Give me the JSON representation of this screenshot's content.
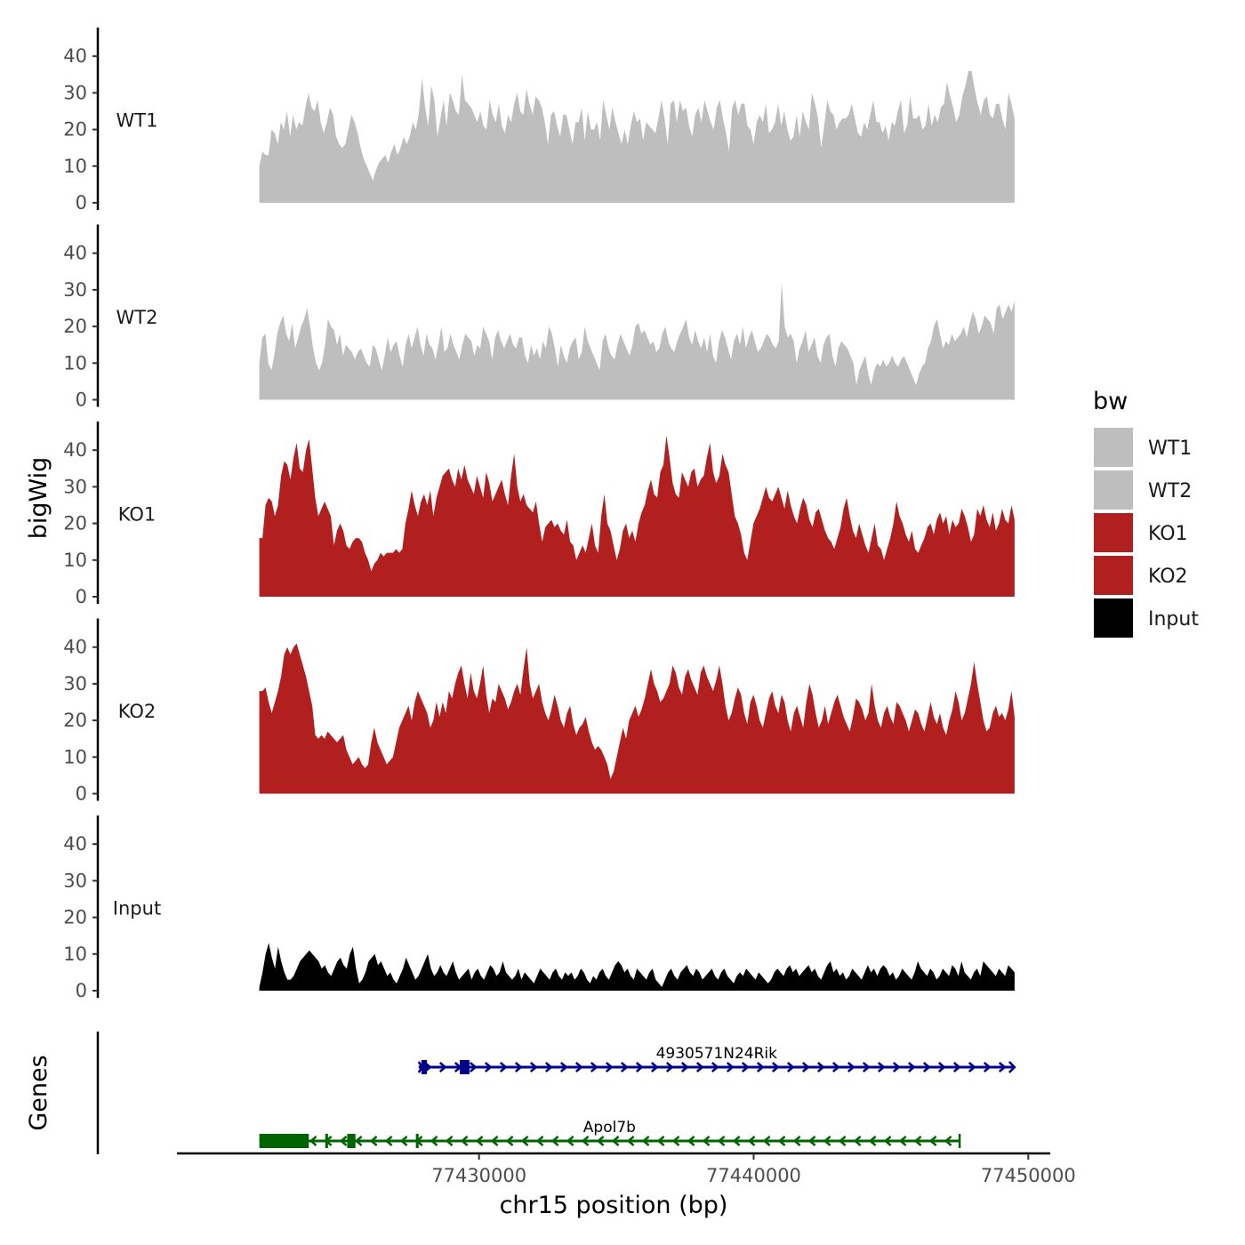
{
  "chart_data": {
    "type": "area",
    "ylabel": "bigWig",
    "xlabel": "chr15 position (bp)",
    "x_range": [
      77422000,
      77449500
    ],
    "x_axis_range": [
      77419000,
      77450800
    ],
    "x_ticks": [
      77430000,
      77440000,
      77450000
    ],
    "x_tick_labels": [
      "77430000",
      "77440000",
      "77450000"
    ],
    "y_range": [
      0,
      45
    ],
    "y_ticks": [
      0,
      10,
      20,
      30,
      40
    ],
    "y_tick_labels": [
      "0",
      "10",
      "20",
      "30",
      "40"
    ],
    "tracks": [
      {
        "name": "WT1",
        "color": "#bebebe",
        "values": [
          10,
          14,
          13,
          13,
          20,
          19,
          16,
          22,
          20,
          25,
          18,
          24,
          20,
          22,
          21,
          26,
          30,
          26,
          25,
          28,
          22,
          19,
          22,
          26,
          24,
          18,
          16,
          15,
          16,
          20,
          24,
          22,
          19,
          15,
          12,
          10,
          8,
          6,
          9,
          11,
          12,
          13,
          11,
          14,
          16,
          13,
          15,
          18,
          16,
          18,
          22,
          20,
          25,
          34,
          26,
          21,
          32,
          28,
          18,
          23,
          28,
          21,
          30,
          28,
          25,
          24,
          35,
          28,
          27,
          26,
          24,
          22,
          25,
          21,
          20,
          28,
          24,
          22,
          27,
          21,
          19,
          24,
          22,
          27,
          30,
          25,
          24,
          31,
          27,
          24,
          29,
          28,
          26,
          22,
          16,
          24,
          25,
          21,
          18,
          24,
          24,
          20,
          16,
          22,
          22,
          26,
          17,
          25,
          20,
          20,
          22,
          17,
          28,
          24,
          20,
          26,
          22,
          19,
          16,
          20,
          16,
          21,
          25,
          22,
          23,
          17,
          22,
          21,
          20,
          19,
          23,
          28,
          23,
          16,
          27,
          28,
          22,
          28,
          25,
          26,
          21,
          18,
          24,
          26,
          22,
          28,
          25,
          22,
          20,
          26,
          28,
          23,
          19,
          14,
          26,
          28,
          24,
          27,
          27,
          21,
          20,
          16,
          22,
          24,
          22,
          27,
          19,
          20,
          22,
          27,
          21,
          25,
          20,
          17,
          18,
          24,
          18,
          25,
          22,
          20,
          30,
          27,
          23,
          15,
          21,
          28,
          25,
          24,
          20,
          22,
          23,
          23,
          24,
          27,
          23,
          19,
          18,
          22,
          20,
          24,
          28,
          22,
          22,
          19,
          21,
          17,
          22,
          21,
          25,
          28,
          19,
          21,
          29,
          23,
          23,
          24,
          20,
          21,
          27,
          21,
          24,
          22,
          26,
          27,
          33,
          29,
          26,
          22,
          24,
          29,
          32,
          36,
          36,
          31,
          27,
          24,
          28,
          29,
          24,
          23,
          27,
          27,
          23,
          20,
          30,
          27,
          23
        ]
      },
      {
        "name": "WT2",
        "color": "#bebebe",
        "values": [
          10,
          17,
          18,
          10,
          8,
          12,
          18,
          21,
          23,
          18,
          16,
          21,
          14,
          17,
          20,
          22,
          25,
          20,
          14,
          10,
          8,
          10,
          15,
          22,
          20,
          19,
          15,
          18,
          12,
          15,
          14,
          13,
          11,
          13,
          14,
          12,
          10,
          9,
          15,
          14,
          11,
          8,
          12,
          17,
          13,
          15,
          16,
          12,
          9,
          15,
          18,
          14,
          17,
          20,
          15,
          12,
          18,
          15,
          14,
          11,
          15,
          20,
          13,
          14,
          18,
          15,
          13,
          11,
          15,
          18,
          17,
          16,
          12,
          15,
          14,
          20,
          18,
          16,
          11,
          17,
          19,
          16,
          14,
          16,
          18,
          15,
          14,
          17,
          17,
          12,
          10,
          15,
          12,
          14,
          11,
          16,
          14,
          20,
          18,
          14,
          9,
          15,
          12,
          10,
          14,
          16,
          17,
          11,
          13,
          20,
          16,
          14,
          12,
          10,
          8,
          16,
          18,
          14,
          12,
          11,
          15,
          18,
          16,
          14,
          12,
          15,
          20,
          21,
          18,
          19,
          17,
          15,
          16,
          13,
          14,
          18,
          20,
          16,
          14,
          13,
          16,
          18,
          20,
          22,
          17,
          15,
          19,
          16,
          14,
          17,
          13,
          18,
          12,
          10,
          16,
          19,
          17,
          14,
          11,
          16,
          18,
          15,
          20,
          14,
          17,
          19,
          16,
          13,
          14,
          16,
          18,
          17,
          15,
          14,
          16,
          32,
          20,
          17,
          18,
          16,
          10,
          14,
          16,
          19,
          13,
          15,
          17,
          12,
          10,
          15,
          17,
          18,
          12,
          9,
          14,
          16,
          15,
          14,
          12,
          10,
          4,
          8,
          10,
          12,
          7,
          4,
          8,
          10,
          9,
          11,
          9,
          10,
          12,
          10,
          9,
          11,
          12,
          10,
          8,
          6,
          4,
          7,
          9,
          10,
          14,
          16,
          20,
          22,
          18,
          14,
          16,
          15,
          18,
          16,
          17,
          18,
          20,
          17,
          21,
          24,
          22,
          18,
          20,
          23,
          22,
          21,
          18,
          25,
          26,
          22,
          24,
          26,
          24,
          27
        ]
      },
      {
        "name": "KO1",
        "color": "#b21f1f",
        "values": [
          16,
          16,
          25,
          27,
          26,
          22,
          25,
          33,
          37,
          36,
          32,
          38,
          42,
          35,
          34,
          40,
          43,
          35,
          27,
          22,
          24,
          26,
          24,
          22,
          14,
          18,
          20,
          18,
          14,
          13,
          15,
          16,
          16,
          15,
          12,
          10,
          7,
          9,
          10,
          12,
          11,
          12,
          12,
          12,
          13,
          12,
          13,
          20,
          24,
          29,
          25,
          22,
          26,
          28,
          25,
          29,
          22,
          27,
          30,
          33,
          34,
          35,
          32,
          30,
          35,
          32,
          36,
          32,
          30,
          28,
          33,
          30,
          27,
          34,
          31,
          26,
          28,
          30,
          32,
          28,
          25,
          33,
          39,
          30,
          26,
          28,
          25,
          24,
          23,
          26,
          20,
          15,
          19,
          20,
          21,
          19,
          20,
          18,
          17,
          21,
          15,
          14,
          10,
          12,
          14,
          12,
          16,
          20,
          14,
          12,
          22,
          28,
          20,
          18,
          14,
          10,
          13,
          18,
          20,
          16,
          18,
          15,
          20,
          23,
          25,
          29,
          32,
          28,
          27,
          34,
          36,
          44,
          38,
          31,
          28,
          27,
          34,
          32,
          30,
          34,
          35,
          30,
          32,
          33,
          38,
          42,
          34,
          31,
          33,
          39,
          36,
          34,
          28,
          22,
          20,
          17,
          12,
          10,
          15,
          20,
          22,
          24,
          27,
          30,
          27,
          26,
          28,
          30,
          27,
          24,
          29,
          25,
          22,
          20,
          24,
          27,
          25,
          21,
          19,
          23,
          24,
          21,
          18,
          16,
          15,
          13,
          16,
          19,
          24,
          27,
          22,
          18,
          16,
          20,
          17,
          14,
          12,
          16,
          20,
          14,
          13,
          10,
          13,
          16,
          20,
          26,
          22,
          20,
          17,
          15,
          18,
          13,
          12,
          14,
          16,
          19,
          20,
          17,
          21,
          23,
          20,
          22,
          17,
          21,
          19,
          20,
          24,
          22,
          19,
          15,
          17,
          24,
          22,
          25,
          21,
          19,
          23,
          18,
          20,
          24,
          21,
          20,
          25,
          21
        ]
      },
      {
        "name": "KO2",
        "color": "#b21f1f",
        "values": [
          28,
          28,
          29,
          25,
          22,
          25,
          28,
          32,
          38,
          40,
          38,
          40,
          41,
          38,
          35,
          32,
          28,
          24,
          16,
          15,
          16,
          15,
          17,
          16,
          15,
          14,
          15,
          16,
          12,
          10,
          8,
          9,
          10,
          8,
          7,
          8,
          14,
          18,
          14,
          12,
          10,
          8,
          9,
          10,
          14,
          18,
          20,
          22,
          24,
          20,
          25,
          28,
          26,
          24,
          22,
          18,
          20,
          25,
          21,
          25,
          22,
          28,
          26,
          30,
          33,
          35,
          30,
          26,
          33,
          28,
          26,
          30,
          35,
          27,
          22,
          26,
          25,
          30,
          28,
          26,
          23,
          25,
          28,
          30,
          27,
          34,
          40,
          30,
          26,
          28,
          30,
          25,
          22,
          20,
          23,
          27,
          24,
          20,
          18,
          22,
          24,
          19,
          16,
          18,
          19,
          21,
          17,
          14,
          12,
          13,
          12,
          10,
          8,
          4,
          6,
          10,
          14,
          18,
          15,
          20,
          22,
          24,
          21,
          23,
          26,
          30,
          34,
          30,
          28,
          25,
          26,
          28,
          30,
          35,
          33,
          29,
          27,
          32,
          34,
          31,
          29,
          27,
          33,
          35,
          32,
          30,
          28,
          31,
          35,
          30,
          24,
          20,
          22,
          26,
          29,
          27,
          22,
          19,
          25,
          27,
          24,
          20,
          18,
          22,
          26,
          28,
          24,
          22,
          27,
          25,
          20,
          17,
          22,
          24,
          21,
          18,
          25,
          30,
          27,
          22,
          18,
          20,
          24,
          19,
          22,
          25,
          27,
          24,
          21,
          19,
          17,
          21,
          26,
          25,
          23,
          20,
          22,
          30,
          24,
          20,
          18,
          22,
          24,
          21,
          19,
          25,
          24,
          22,
          20,
          17,
          20,
          23,
          22,
          19,
          17,
          21,
          25,
          21,
          19,
          22,
          18,
          16,
          20,
          23,
          28,
          25,
          20,
          22,
          26,
          30,
          36,
          30,
          25,
          20,
          17,
          18,
          22,
          24,
          21,
          22,
          20,
          23,
          28,
          21
        ]
      },
      {
        "name": "Input",
        "color": "#000000",
        "values": [
          1,
          5,
          10,
          13,
          9,
          6,
          12,
          8,
          5,
          3,
          3,
          4,
          6,
          8,
          9,
          10,
          11,
          10,
          9,
          8,
          6,
          7,
          5,
          4,
          6,
          8,
          9,
          7,
          6,
          10,
          12,
          6,
          2,
          3,
          5,
          8,
          9,
          10,
          7,
          8,
          6,
          4,
          5,
          3,
          2,
          4,
          6,
          9,
          7,
          5,
          3,
          4,
          6,
          8,
          10,
          6,
          4,
          5,
          7,
          5,
          4,
          6,
          8,
          5,
          3,
          4,
          5,
          6,
          3,
          5,
          6,
          4,
          3,
          5,
          7,
          6,
          4,
          5,
          8,
          5,
          4,
          3,
          4,
          6,
          3,
          5,
          4,
          3,
          2,
          4,
          6,
          5,
          4,
          3,
          5,
          6,
          4,
          3,
          5,
          4,
          5,
          3,
          4,
          6,
          5,
          3,
          2,
          4,
          3,
          5,
          6,
          4,
          3,
          5,
          7,
          8,
          7,
          5,
          6,
          4,
          3,
          6,
          5,
          4,
          3,
          5,
          6,
          3,
          2,
          1,
          3,
          5,
          6,
          4,
          3,
          5,
          6,
          7,
          5,
          4,
          6,
          5,
          3,
          4,
          5,
          6,
          4,
          3,
          5,
          6,
          4,
          3,
          2,
          4,
          5,
          4,
          6,
          5,
          4,
          3,
          5,
          4,
          3,
          2,
          3,
          5,
          6,
          5,
          4,
          6,
          7,
          5,
          6,
          4,
          5,
          6,
          7,
          5,
          6,
          4,
          3,
          5,
          7,
          8,
          5,
          6,
          4,
          5,
          3,
          4,
          6,
          5,
          4,
          3,
          5,
          7,
          5,
          6,
          4,
          6,
          7,
          6,
          4,
          5,
          3,
          4,
          6,
          5,
          4,
          3,
          5,
          8,
          6,
          5,
          4,
          6,
          5,
          3,
          4,
          6,
          5,
          4,
          7,
          6,
          4,
          8,
          5,
          4,
          3,
          5,
          6,
          4,
          8,
          7,
          6,
          5,
          4,
          6,
          5,
          4,
          7,
          6,
          5
        ]
      }
    ],
    "legend": {
      "title": "bw",
      "position": "right",
      "entries": [
        {
          "label": "WT1",
          "color": "#bebebe"
        },
        {
          "label": "WT2",
          "color": "#bebebe"
        },
        {
          "label": "KO1",
          "color": "#b21f1f"
        },
        {
          "label": "KO2",
          "color": "#b21f1f"
        },
        {
          "label": "Input",
          "color": "#000000"
        }
      ]
    },
    "genes_label": "Genes",
    "genes": [
      {
        "name": "4930571N24Rik",
        "strand": "+",
        "color": "#00008b",
        "start": 77427800,
        "end": 77449500,
        "exons": [
          [
            77427900,
            77428100
          ],
          [
            77429300,
            77429650
          ]
        ]
      },
      {
        "name": "Apol7b",
        "strand": "-",
        "color": "#006400",
        "start": 77422000,
        "end": 77447500,
        "exons": [
          [
            77422000,
            77423800
          ],
          [
            77424400,
            77424500
          ],
          [
            77425200,
            77425500
          ],
          [
            77427700,
            77427800
          ]
        ]
      }
    ]
  }
}
